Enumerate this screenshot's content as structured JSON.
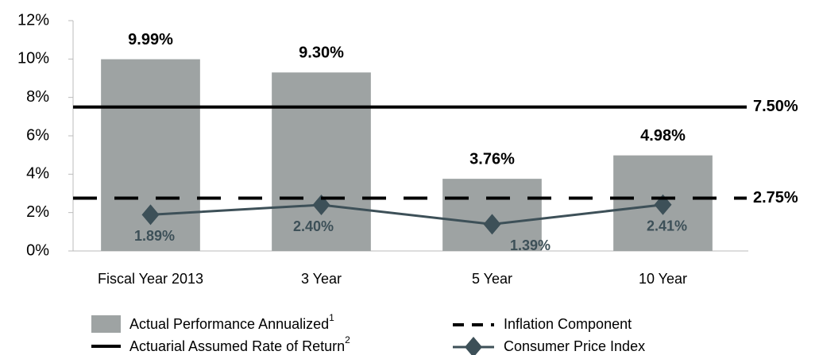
{
  "chart_data": {
    "type": "bar",
    "categories": [
      "Fiscal Year 2013",
      "3 Year",
      "5 Year",
      "10 Year"
    ],
    "series": [
      {
        "name": "Actual Performance Annualized",
        "footnote": "1",
        "type": "bar",
        "color": "#9ea3a3",
        "values": [
          9.99,
          9.3,
          3.76,
          4.98
        ],
        "value_labels": [
          "9.99%",
          "9.30%",
          "3.76%",
          "4.98%"
        ]
      },
      {
        "name": "Consumer Price Index",
        "type": "line",
        "color": "#3d5058",
        "values": [
          1.89,
          2.4,
          1.39,
          2.41
        ],
        "value_labels": [
          "1.89%",
          "2.40%",
          "1.39%",
          "2.41%"
        ]
      }
    ],
    "reference_lines": [
      {
        "name": "Actuarial Assumed Rate of Return",
        "footnote": "2",
        "value": 7.5,
        "label": "7.50%",
        "style": "solid",
        "color": "#000000"
      },
      {
        "name": "Inflation Component",
        "value": 2.75,
        "label": "2.75%",
        "style": "dashed",
        "color": "#000000"
      }
    ],
    "ylim": [
      0,
      12
    ],
    "yticks": [
      {
        "value": 0,
        "label": "0%"
      },
      {
        "value": 2,
        "label": "2%"
      },
      {
        "value": 4,
        "label": "4%"
      },
      {
        "value": 6,
        "label": "6%"
      },
      {
        "value": 8,
        "label": "8%"
      },
      {
        "value": 10,
        "label": "10%"
      },
      {
        "value": 12,
        "label": "12%"
      }
    ]
  }
}
